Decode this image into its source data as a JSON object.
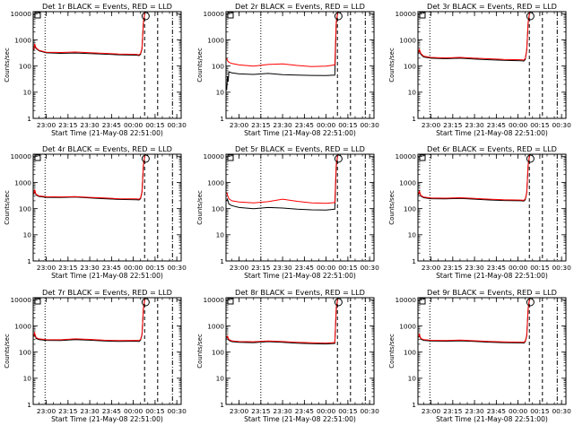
{
  "chart_data": [
    {
      "type": "line",
      "title": "Det 1r BLACK = Events, RED = LLD",
      "xlabel": "Start Time (21-May-08 22:51:00)",
      "ylabel": "Counts/sec",
      "x_ticks": [
        "23:00",
        "23:15",
        "23:30",
        "23:45",
        "00:00",
        "00:15",
        "00:30"
      ],
      "y_ticks": [
        "1",
        "10",
        "100",
        "1000",
        "10000"
      ],
      "y_scale": "log",
      "ylim": [
        1,
        12000
      ],
      "xlim_minutes_after_2300": [
        -9,
        93
      ],
      "event_markers": {
        "dotted": [
          -0.8
        ],
        "dashed": [
          67.8,
          76.8
        ],
        "dash_dot": [
          87
        ]
      },
      "series": [
        {
          "color": "#000000",
          "x": [
            -8.5,
            -8,
            -7,
            -5,
            0,
            10,
            20,
            30,
            40,
            50,
            62,
            64,
            65,
            66,
            67,
            68
          ],
          "y": [
            400,
            650,
            470,
            380,
            320,
            305,
            315,
            300,
            285,
            270,
            260,
            250,
            280,
            450,
            4500,
            12000
          ]
        },
        {
          "color": "#ff0000",
          "x": [
            -8.5,
            -8,
            -7,
            -5,
            0,
            10,
            20,
            30,
            40,
            50,
            62,
            64,
            65,
            66,
            67,
            68
          ],
          "y": [
            420,
            700,
            500,
            400,
            340,
            330,
            345,
            325,
            305,
            290,
            280,
            270,
            300,
            480,
            4800,
            12000
          ]
        }
      ]
    },
    {
      "type": "line",
      "title": "Det 2r BLACK = Events, RED = LLD",
      "xlabel": "Start Time (21-May-08 22:51:00)",
      "ylabel": "Counts/sec",
      "x_ticks": [
        "23:00",
        "23:15",
        "23:30",
        "23:45",
        "00:00",
        "00:15",
        "00:30"
      ],
      "y_ticks": [
        "1",
        "10",
        "100",
        "1000",
        "10000"
      ],
      "y_scale": "log",
      "ylim": [
        1,
        12000
      ],
      "xlim_minutes_after_2300": [
        -9,
        93
      ],
      "event_markers": {
        "dotted": [
          15
        ],
        "dashed": [
          67.8,
          76.8
        ],
        "dash_dot": [
          87
        ]
      },
      "series": [
        {
          "color": "#000000",
          "x": [
            -8.5,
            -8,
            -7.5,
            -7,
            -5,
            0,
            10,
            20,
            30,
            40,
            50,
            60,
            66,
            67,
            68
          ],
          "y": [
            12,
            40,
            25,
            60,
            55,
            50,
            48,
            52,
            47,
            45,
            44,
            43,
            45,
            4000,
            12000
          ]
        },
        {
          "color": "#ff0000",
          "x": [
            -8.5,
            -8,
            -7,
            -5,
            0,
            10,
            20,
            30,
            40,
            50,
            60,
            66,
            67,
            68
          ],
          "y": [
            200,
            160,
            140,
            125,
            110,
            100,
            115,
            120,
            105,
            95,
            100,
            110,
            5000,
            12000
          ]
        }
      ]
    },
    {
      "type": "line",
      "title": "Det 3r BLACK = Events, RED = LLD",
      "xlabel": "Start Time (21-May-08 22:51:00)",
      "ylabel": "Counts/sec",
      "x_ticks": [
        "23:00",
        "23:15",
        "23:30",
        "23:45",
        "00:00",
        "00:15",
        "00:30"
      ],
      "y_ticks": [
        "1",
        "10",
        "100",
        "1000",
        "10000"
      ],
      "y_scale": "log",
      "ylim": [
        1,
        12000
      ],
      "xlim_minutes_after_2300": [
        -9,
        93
      ],
      "event_markers": {
        "dotted": [
          -0.8
        ],
        "dashed": [
          67.8,
          76.8
        ],
        "dash_dot": [
          87
        ]
      },
      "series": [
        {
          "color": "#000000",
          "x": [
            -8.5,
            -8,
            -7,
            -5,
            0,
            10,
            20,
            30,
            40,
            50,
            62,
            64,
            65,
            66,
            67,
            68
          ],
          "y": [
            320,
            400,
            280,
            220,
            200,
            190,
            200,
            185,
            175,
            165,
            160,
            155,
            180,
            400,
            4500,
            12000
          ]
        },
        {
          "color": "#ff0000",
          "x": [
            -8.5,
            -8,
            -7,
            -5,
            0,
            10,
            20,
            30,
            40,
            50,
            62,
            64,
            65,
            66,
            67,
            68
          ],
          "y": [
            340,
            430,
            300,
            240,
            215,
            205,
            215,
            200,
            190,
            180,
            175,
            170,
            195,
            420,
            4800,
            12000
          ]
        }
      ]
    },
    {
      "type": "line",
      "title": "Det 4r BLACK = Events, RED = LLD",
      "xlabel": "Start Time (21-May-08 22:51:00)",
      "ylabel": "Counts/sec",
      "x_ticks": [
        "23:00",
        "23:15",
        "23:30",
        "23:45",
        "00:00",
        "00:15",
        "00:30"
      ],
      "y_ticks": [
        "1",
        "10",
        "100",
        "1000",
        "10000"
      ],
      "y_scale": "log",
      "ylim": [
        1,
        12000
      ],
      "xlim_minutes_after_2300": [
        -9,
        93
      ],
      "event_markers": {
        "dotted": [
          -0.8
        ],
        "dashed": [
          67.8,
          76.8
        ],
        "dash_dot": [
          87
        ]
      },
      "series": [
        {
          "color": "#000000",
          "x": [
            -8.5,
            -8,
            -7,
            -5,
            0,
            10,
            20,
            30,
            40,
            50,
            62,
            64,
            65,
            66,
            67,
            68
          ],
          "y": [
            350,
            500,
            330,
            290,
            270,
            265,
            275,
            255,
            240,
            225,
            220,
            215,
            240,
            420,
            4500,
            12000
          ]
        },
        {
          "color": "#ff0000",
          "x": [
            -8.5,
            -8,
            -7,
            -5,
            0,
            10,
            20,
            30,
            40,
            50,
            62,
            64,
            65,
            66,
            67,
            68
          ],
          "y": [
            370,
            530,
            350,
            305,
            285,
            280,
            290,
            270,
            255,
            240,
            235,
            230,
            255,
            440,
            4800,
            12000
          ]
        }
      ]
    },
    {
      "type": "line",
      "title": "Det 5r BLACK = Events, RED = LLD",
      "xlabel": "Start Time (21-May-08 22:51:00)",
      "ylabel": "Counts/sec",
      "x_ticks": [
        "23:00",
        "23:15",
        "23:30",
        "23:45",
        "00:00",
        "00:15",
        "00:30"
      ],
      "y_ticks": [
        "1",
        "10",
        "100",
        "1000",
        "10000"
      ],
      "y_scale": "log",
      "ylim": [
        1,
        12000
      ],
      "xlim_minutes_after_2300": [
        -9,
        93
      ],
      "event_markers": {
        "dotted": [
          15
        ],
        "dashed": [
          67.8,
          76.8
        ],
        "dash_dot": [
          87
        ]
      },
      "series": [
        {
          "color": "#000000",
          "x": [
            -8.5,
            -8,
            -7,
            -5,
            0,
            10,
            20,
            30,
            40,
            50,
            60,
            66,
            67,
            68
          ],
          "y": [
            200,
            230,
            150,
            130,
            110,
            100,
            110,
            105,
            95,
            90,
            88,
            95,
            4000,
            12000
          ]
        },
        {
          "color": "#ff0000",
          "x": [
            -8.5,
            -8,
            -7,
            -5,
            0,
            10,
            20,
            30,
            40,
            50,
            60,
            66,
            67,
            68
          ],
          "y": [
            420,
            330,
            240,
            200,
            180,
            165,
            185,
            230,
            190,
            165,
            160,
            170,
            5000,
            12000
          ]
        }
      ]
    },
    {
      "type": "line",
      "title": "Det 6r BLACK = Events, RED = LLD",
      "xlabel": "Start Time (21-May-08 22:51:00)",
      "ylabel": "Counts/sec",
      "x_ticks": [
        "23:00",
        "23:15",
        "23:30",
        "23:45",
        "00:00",
        "00:15",
        "00:30"
      ],
      "y_ticks": [
        "1",
        "10",
        "100",
        "1000",
        "10000"
      ],
      "y_scale": "log",
      "ylim": [
        1,
        12000
      ],
      "xlim_minutes_after_2300": [
        -9,
        93
      ],
      "event_markers": {
        "dotted": [
          -0.8
        ],
        "dashed": [
          67.8,
          76.8
        ],
        "dash_dot": [
          87
        ]
      },
      "series": [
        {
          "color": "#000000",
          "x": [
            -8.5,
            -8,
            -7,
            -5,
            0,
            10,
            20,
            30,
            40,
            50,
            62,
            64,
            65,
            66,
            67,
            68
          ],
          "y": [
            330,
            450,
            300,
            260,
            240,
            235,
            245,
            230,
            215,
            205,
            200,
            195,
            220,
            400,
            4500,
            12000
          ]
        },
        {
          "color": "#ff0000",
          "x": [
            -8.5,
            -8,
            -7,
            -5,
            0,
            10,
            20,
            30,
            40,
            50,
            62,
            64,
            65,
            66,
            67,
            68
          ],
          "y": [
            350,
            480,
            320,
            275,
            255,
            250,
            260,
            245,
            230,
            218,
            213,
            208,
            235,
            420,
            4800,
            12000
          ]
        }
      ]
    },
    {
      "type": "line",
      "title": "Det 7r BLACK = Events, RED = LLD",
      "xlabel": "Start Time (21-May-08 22:51:00)",
      "ylabel": "Counts/sec",
      "x_ticks": [
        "23:00",
        "23:15",
        "23:30",
        "23:45",
        "00:00",
        "00:15",
        "00:30"
      ],
      "y_ticks": [
        "1",
        "10",
        "100",
        "1000",
        "10000"
      ],
      "y_scale": "log",
      "ylim": [
        1,
        12000
      ],
      "xlim_minutes_after_2300": [
        -9,
        93
      ],
      "event_markers": {
        "dotted": [
          -0.8
        ],
        "dashed": [
          67.8,
          76.8
        ],
        "dash_dot": [
          87
        ]
      },
      "series": [
        {
          "color": "#000000",
          "x": [
            -8.5,
            -8,
            -7,
            -5,
            0,
            10,
            20,
            30,
            40,
            50,
            62,
            64,
            65,
            66,
            67,
            68
          ],
          "y": [
            400,
            500,
            330,
            300,
            280,
            275,
            300,
            285,
            265,
            255,
            260,
            255,
            285,
            450,
            4500,
            12000
          ]
        },
        {
          "color": "#ff0000",
          "x": [
            -8.5,
            -8,
            -7,
            -5,
            0,
            10,
            20,
            30,
            40,
            50,
            62,
            64,
            65,
            66,
            67,
            68
          ],
          "y": [
            420,
            540,
            360,
            320,
            300,
            295,
            320,
            305,
            285,
            275,
            280,
            275,
            305,
            470,
            4800,
            12000
          ]
        }
      ]
    },
    {
      "type": "line",
      "title": "Det 8r BLACK = Events, RED = LLD",
      "xlabel": "Start Time (21-May-08 22:51:00)",
      "ylabel": "Counts/sec",
      "x_ticks": [
        "23:00",
        "23:15",
        "23:30",
        "23:45",
        "00:00",
        "00:15",
        "00:30"
      ],
      "y_ticks": [
        "1",
        "10",
        "100",
        "1000",
        "10000"
      ],
      "y_scale": "log",
      "ylim": [
        1,
        12000
      ],
      "xlim_minutes_after_2300": [
        -9,
        93
      ],
      "event_markers": {
        "dotted": [
          15
        ],
        "dashed": [
          67.8,
          76.8
        ],
        "dash_dot": [
          87
        ]
      },
      "series": [
        {
          "color": "#000000",
          "x": [
            -8.5,
            -8,
            -7,
            -5,
            0,
            10,
            20,
            30,
            40,
            50,
            60,
            66,
            67,
            68
          ],
          "y": [
            330,
            380,
            280,
            250,
            235,
            230,
            250,
            235,
            220,
            210,
            205,
            215,
            4000,
            12000
          ]
        },
        {
          "color": "#ff0000",
          "x": [
            -8.5,
            -8,
            -7,
            -5,
            0,
            10,
            20,
            30,
            40,
            50,
            60,
            66,
            67,
            68
          ],
          "y": [
            350,
            410,
            300,
            270,
            252,
            248,
            268,
            252,
            238,
            228,
            222,
            232,
            5000,
            12000
          ]
        }
      ]
    },
    {
      "type": "line",
      "title": "Det 9r BLACK = Events, RED = LLD",
      "xlabel": "Start Time (21-May-08 22:51:00)",
      "ylabel": "Counts/sec",
      "x_ticks": [
        "23:00",
        "23:15",
        "23:30",
        "23:45",
        "00:00",
        "00:15",
        "00:30"
      ],
      "y_ticks": [
        "1",
        "10",
        "100",
        "1000",
        "10000"
      ],
      "y_scale": "log",
      "ylim": [
        1,
        12000
      ],
      "xlim_minutes_after_2300": [
        -9,
        93
      ],
      "event_markers": {
        "dotted": [
          -0.8
        ],
        "dashed": [
          67.8,
          76.8
        ],
        "dash_dot": [
          87
        ]
      },
      "series": [
        {
          "color": "#000000",
          "x": [
            -8.5,
            -8,
            -7,
            -5,
            0,
            10,
            20,
            30,
            40,
            50,
            62,
            64,
            65,
            66,
            67,
            68
          ],
          "y": [
            360,
            450,
            310,
            280,
            265,
            260,
            270,
            255,
            240,
            230,
            225,
            222,
            250,
            420,
            4500,
            12000
          ]
        },
        {
          "color": "#ff0000",
          "x": [
            -8.5,
            -8,
            -7,
            -5,
            0,
            10,
            20,
            30,
            40,
            50,
            62,
            64,
            65,
            66,
            67,
            68
          ],
          "y": [
            380,
            480,
            330,
            298,
            282,
            277,
            288,
            272,
            256,
            245,
            240,
            237,
            265,
            440,
            4800,
            12000
          ]
        }
      ]
    }
  ]
}
